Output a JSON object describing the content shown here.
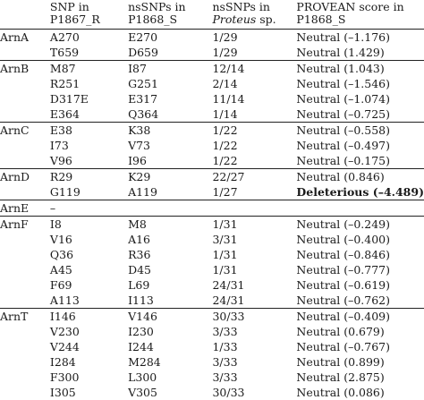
{
  "headers": [
    "",
    "SNP in P1867_R",
    "nsSNPs in P1868_S",
    "nsSNPs in Proteus sp.",
    "PROVEAN score in P1868_S"
  ],
  "header_lines": [
    [
      "",
      ""
    ],
    [
      "SNP in",
      "P1867_R"
    ],
    [
      "nsSNPs in",
      "P1868_S"
    ],
    [
      "nsSNPs in",
      "Proteus sp."
    ],
    [
      "PROVEAN score in",
      "P1868_S"
    ]
  ],
  "rows": [
    {
      "gene": "ArnA",
      "snp": "A270",
      "ns1868": "E270",
      "proteus": "1/29",
      "provean": "Neutral (–1.176)",
      "bold": false,
      "start": true
    },
    {
      "gene": "",
      "snp": "T659",
      "ns1868": "D659",
      "proteus": "1/29",
      "provean": "Neutral (1.429)",
      "bold": false,
      "start": false
    },
    {
      "gene": "ArnB",
      "snp": "M87",
      "ns1868": "I87",
      "proteus": "12/14",
      "provean": "Neutral (1.043)",
      "bold": false,
      "start": true
    },
    {
      "gene": "",
      "snp": "R251",
      "ns1868": "G251",
      "proteus": "2/14",
      "provean": "Neutral (–1.546)",
      "bold": false,
      "start": false
    },
    {
      "gene": "",
      "snp": "D317E",
      "ns1868": "E317",
      "proteus": "11/14",
      "provean": "Neutral (–1.074)",
      "bold": false,
      "start": false
    },
    {
      "gene": "",
      "snp": "E364",
      "ns1868": "Q364",
      "proteus": "1/14",
      "provean": "Neutral (–0.725)",
      "bold": false,
      "start": false
    },
    {
      "gene": "ArnC",
      "snp": "E38",
      "ns1868": "K38",
      "proteus": "1/22",
      "provean": "Neutral (–0.558)",
      "bold": false,
      "start": true
    },
    {
      "gene": "",
      "snp": "I73",
      "ns1868": "V73",
      "proteus": "1/22",
      "provean": "Neutral (–0.497)",
      "bold": false,
      "start": false
    },
    {
      "gene": "",
      "snp": "V96",
      "ns1868": "I96",
      "proteus": "1/22",
      "provean": "Neutral (–0.175)",
      "bold": false,
      "start": false
    },
    {
      "gene": "ArnD",
      "snp": "R29",
      "ns1868": "K29",
      "proteus": "22/27",
      "provean": "Neutral (0.846)",
      "bold": false,
      "start": true
    },
    {
      "gene": "",
      "snp": "G119",
      "ns1868": "A119",
      "proteus": "1/27",
      "provean": "Deleterious (–4.489)",
      "bold": true,
      "start": false
    },
    {
      "gene": "ArnE",
      "snp": "–",
      "ns1868": "",
      "proteus": "",
      "provean": "",
      "bold": false,
      "start": true
    },
    {
      "gene": "ArnF",
      "snp": "I8",
      "ns1868": "M8",
      "proteus": "1/31",
      "provean": "Neutral (–0.249)",
      "bold": false,
      "start": true
    },
    {
      "gene": "",
      "snp": "V16",
      "ns1868": "A16",
      "proteus": "3/31",
      "provean": "Neutral (–0.400)",
      "bold": false,
      "start": false
    },
    {
      "gene": "",
      "snp": "Q36",
      "ns1868": "R36",
      "proteus": "1/31",
      "provean": "Neutral (–0.846)",
      "bold": false,
      "start": false
    },
    {
      "gene": "",
      "snp": "A45",
      "ns1868": "D45",
      "proteus": "1/31",
      "provean": "Neutral (–0.777)",
      "bold": false,
      "start": false
    },
    {
      "gene": "",
      "snp": "F69",
      "ns1868": "L69",
      "proteus": "24/31",
      "provean": "Neutral (–0.619)",
      "bold": false,
      "start": false
    },
    {
      "gene": "",
      "snp": "A113",
      "ns1868": "I113",
      "proteus": "24/31",
      "provean": "Neutral (–0.762)",
      "bold": false,
      "start": false
    },
    {
      "gene": "ArnT",
      "snp": "I146",
      "ns1868": "V146",
      "proteus": "30/33",
      "provean": "Neutral (–0.409)",
      "bold": false,
      "start": true
    },
    {
      "gene": "",
      "snp": "V230",
      "ns1868": "I230",
      "proteus": "3/33",
      "provean": "Neutral (0.679)",
      "bold": false,
      "start": false
    },
    {
      "gene": "",
      "snp": "V244",
      "ns1868": "I244",
      "proteus": "1/33",
      "provean": "Neutral (–0.767)",
      "bold": false,
      "start": false
    },
    {
      "gene": "",
      "snp": "I284",
      "ns1868": "M284",
      "proteus": "3/33",
      "provean": "Neutral (0.899)",
      "bold": false,
      "start": false
    },
    {
      "gene": "",
      "snp": "F300",
      "ns1868": "L300",
      "proteus": "3/33",
      "provean": "Neutral (2.875)",
      "bold": false,
      "start": false
    },
    {
      "gene": "",
      "snp": "I305",
      "ns1868": "V305",
      "proteus": "30/33",
      "provean": "Neutral (0.086)",
      "bold": false,
      "start": false
    }
  ]
}
